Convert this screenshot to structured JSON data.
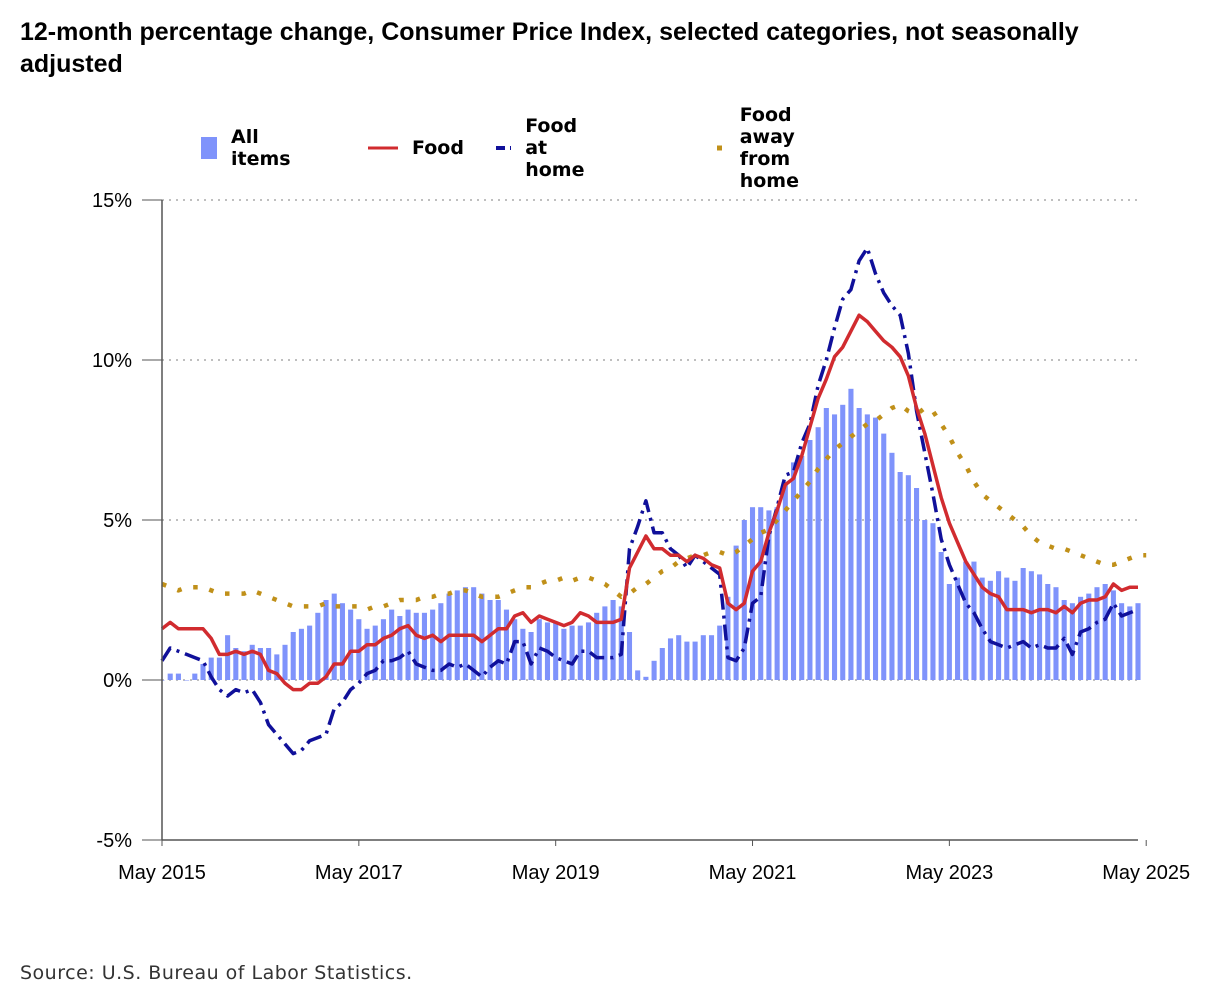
{
  "title": "12-month percentage change, Consumer Price Index, selected categories, not seasonally adjusted",
  "source": "Source: U.S. Bureau of Labor Statistics.",
  "legend": {
    "all_items": "All items",
    "food": "Food",
    "food_at_home": "Food at home",
    "food_away": "Food away from home"
  },
  "colors": {
    "all_items": "#7f93fb",
    "food": "#d12b2f",
    "food_at_home": "#10109a",
    "food_away": "#c09019",
    "grid": "#aaaaaa",
    "axis": "#555555"
  },
  "chart_data": {
    "type": "bar+line",
    "title": "12-month percentage change, Consumer Price Index, selected categories, not seasonally adjusted",
    "x_start": "May 2015",
    "x_end": "May 2025",
    "x_ticks": [
      "May 2015",
      "May 2017",
      "May 2019",
      "May 2021",
      "May 2023",
      "May 2025"
    ],
    "y_ticks": [
      "15%",
      "10%",
      "5%",
      "0%",
      "-5%"
    ],
    "y_tick_values": [
      15,
      10,
      5,
      0,
      -5
    ],
    "ylim": [
      -5,
      15
    ],
    "series": [
      {
        "name": "All items",
        "key": "all_items",
        "type": "bar",
        "values": [
          0.0,
          0.2,
          0.2,
          0.0,
          0.2,
          0.5,
          0.7,
          0.7,
          1.4,
          1.0,
          0.9,
          1.1,
          1.0,
          1.0,
          0.8,
          1.1,
          1.5,
          1.6,
          1.7,
          2.1,
          2.5,
          2.7,
          2.4,
          2.2,
          1.9,
          1.6,
          1.7,
          1.9,
          2.2,
          2.0,
          2.2,
          2.1,
          2.1,
          2.2,
          2.4,
          2.7,
          2.8,
          2.9,
          2.9,
          2.7,
          2.5,
          2.5,
          2.2,
          1.9,
          1.6,
          1.5,
          1.9,
          1.8,
          1.8,
          1.6,
          1.7,
          1.7,
          1.8,
          2.1,
          2.3,
          2.5,
          2.3,
          1.5,
          0.3,
          0.1,
          0.6,
          1.0,
          1.3,
          1.4,
          1.2,
          1.2,
          1.4,
          1.4,
          1.7,
          2.6,
          4.2,
          5.0,
          5.4,
          5.4,
          5.3,
          5.4,
          6.2,
          6.8,
          7.0,
          7.5,
          7.9,
          8.5,
          8.3,
          8.6,
          9.1,
          8.5,
          8.3,
          8.2,
          7.7,
          7.1,
          6.5,
          6.4,
          6.0,
          5.0,
          4.9,
          4.0,
          3.0,
          3.2,
          3.7,
          3.7,
          3.2,
          3.1,
          3.4,
          3.2,
          3.1,
          3.5,
          3.4,
          3.3,
          3.0,
          2.9,
          2.5,
          2.4,
          2.6,
          2.7,
          2.9,
          3.0,
          2.8,
          2.4,
          2.3,
          2.4
        ],
        "values_meta": {
          "start": "2015-05",
          "end": "2025-05",
          "frequency": "monthly"
        }
      },
      {
        "name": "Food",
        "key": "food",
        "type": "line",
        "style": "solid",
        "values": [
          1.6,
          1.8,
          1.6,
          1.6,
          1.6,
          1.6,
          1.3,
          0.8,
          0.8,
          0.9,
          0.8,
          0.9,
          0.8,
          0.3,
          0.2,
          -0.1,
          -0.3,
          -0.3,
          -0.1,
          -0.1,
          0.1,
          0.5,
          0.5,
          0.9,
          0.9,
          1.1,
          1.1,
          1.3,
          1.4,
          1.6,
          1.7,
          1.4,
          1.3,
          1.4,
          1.2,
          1.4,
          1.4,
          1.4,
          1.4,
          1.2,
          1.4,
          1.6,
          1.6,
          2.0,
          2.1,
          1.8,
          2.0,
          1.9,
          1.8,
          1.7,
          1.8,
          2.1,
          2.0,
          1.8,
          1.8,
          1.8,
          1.9,
          3.5,
          4.0,
          4.5,
          4.1,
          4.1,
          3.9,
          3.9,
          3.7,
          3.9,
          3.8,
          3.6,
          3.5,
          2.4,
          2.2,
          2.4,
          3.4,
          3.7,
          4.6,
          5.3,
          6.1,
          6.3,
          7.0,
          7.9,
          8.8,
          9.4,
          10.1,
          10.4,
          10.9,
          11.4,
          11.2,
          10.9,
          10.6,
          10.4,
          10.1,
          9.5,
          8.5,
          7.7,
          6.7,
          5.7,
          4.9,
          4.3,
          3.7,
          3.3,
          2.9,
          2.7,
          2.6,
          2.2,
          2.2,
          2.2,
          2.1,
          2.2,
          2.2,
          2.1,
          2.3,
          2.1,
          2.4,
          2.5,
          2.5,
          2.6,
          3.0,
          2.8,
          2.9,
          2.9
        ],
        "values_meta": {
          "start": "2015-05",
          "end": "2025-05",
          "frequency": "monthly"
        }
      },
      {
        "name": "Food at home",
        "key": "food_at_home",
        "type": "line",
        "style": "dash-dot",
        "values": [
          0.6,
          1.0,
          0.9,
          0.8,
          0.7,
          0.6,
          0.1,
          -0.3,
          -0.5,
          -0.3,
          -0.4,
          -0.3,
          -0.7,
          -1.4,
          -1.7,
          -2.0,
          -2.3,
          -2.2,
          -1.9,
          -1.8,
          -1.7,
          -0.9,
          -0.7,
          -0.3,
          -0.1,
          0.2,
          0.3,
          0.6,
          0.6,
          0.7,
          0.9,
          0.5,
          0.4,
          0.3,
          0.3,
          0.5,
          0.4,
          0.5,
          0.3,
          0.1,
          0.4,
          0.6,
          0.5,
          1.2,
          1.2,
          0.5,
          1.0,
          0.9,
          0.7,
          0.6,
          0.5,
          0.9,
          0.9,
          0.7,
          0.7,
          0.7,
          0.8,
          4.1,
          4.8,
          5.6,
          4.6,
          4.6,
          4.1,
          3.9,
          3.5,
          3.9,
          3.7,
          3.5,
          3.3,
          0.7,
          0.6,
          1.0,
          2.4,
          2.6,
          4.5,
          5.4,
          6.4,
          6.5,
          7.4,
          8.0,
          9.2,
          10.0,
          11.0,
          11.9,
          12.2,
          13.1,
          13.5,
          12.7,
          12.1,
          11.7,
          11.4,
          10.2,
          8.4,
          7.1,
          5.8,
          4.4,
          3.6,
          3.0,
          2.4,
          2.1,
          1.6,
          1.2,
          1.1,
          1.0,
          1.1,
          1.2,
          1.0,
          1.1,
          1.0,
          1.0,
          1.3,
          0.8,
          1.5,
          1.6,
          1.8,
          1.9,
          2.4,
          2.0,
          2.1,
          2.2
        ],
        "values_meta": {
          "start": "2015-05",
          "end": "2025-05",
          "frequency": "monthly"
        }
      },
      {
        "name": "Food away from home",
        "key": "food_away",
        "type": "line",
        "style": "dotted",
        "values": [
          3.0,
          2.9,
          2.8,
          2.9,
          2.9,
          2.9,
          2.8,
          2.7,
          2.7,
          2.7,
          2.7,
          2.8,
          2.7,
          2.6,
          2.5,
          2.4,
          2.3,
          2.3,
          2.3,
          2.3,
          2.4,
          2.3,
          2.3,
          2.3,
          2.3,
          2.2,
          2.3,
          2.3,
          2.4,
          2.5,
          2.5,
          2.5,
          2.6,
          2.6,
          2.7,
          2.7,
          2.8,
          2.8,
          2.7,
          2.6,
          2.6,
          2.6,
          2.7,
          2.8,
          2.9,
          2.9,
          3.0,
          3.1,
          3.1,
          3.2,
          3.1,
          3.2,
          3.2,
          3.1,
          3.0,
          2.8,
          2.6,
          2.7,
          2.9,
          3.0,
          3.2,
          3.4,
          3.5,
          3.7,
          3.8,
          3.9,
          3.9,
          4.0,
          4.0,
          3.9,
          4.0,
          4.2,
          4.4,
          4.6,
          4.7,
          5.0,
          5.3,
          5.6,
          5.9,
          6.2,
          6.6,
          6.9,
          7.2,
          7.4,
          7.6,
          7.8,
          8.0,
          8.1,
          8.3,
          8.5,
          8.6,
          8.4,
          8.3,
          8.5,
          8.4,
          8.0,
          7.6,
          7.1,
          6.7,
          6.2,
          5.8,
          5.6,
          5.4,
          5.2,
          5.0,
          4.8,
          4.5,
          4.3,
          4.2,
          4.1,
          4.1,
          4.0,
          3.9,
          3.8,
          3.7,
          3.6,
          3.6,
          3.7,
          3.8,
          3.9,
          3.9
        ],
        "values_meta": {
          "start": "2015-05",
          "end": "2025-05",
          "frequency": "monthly"
        }
      }
    ]
  }
}
